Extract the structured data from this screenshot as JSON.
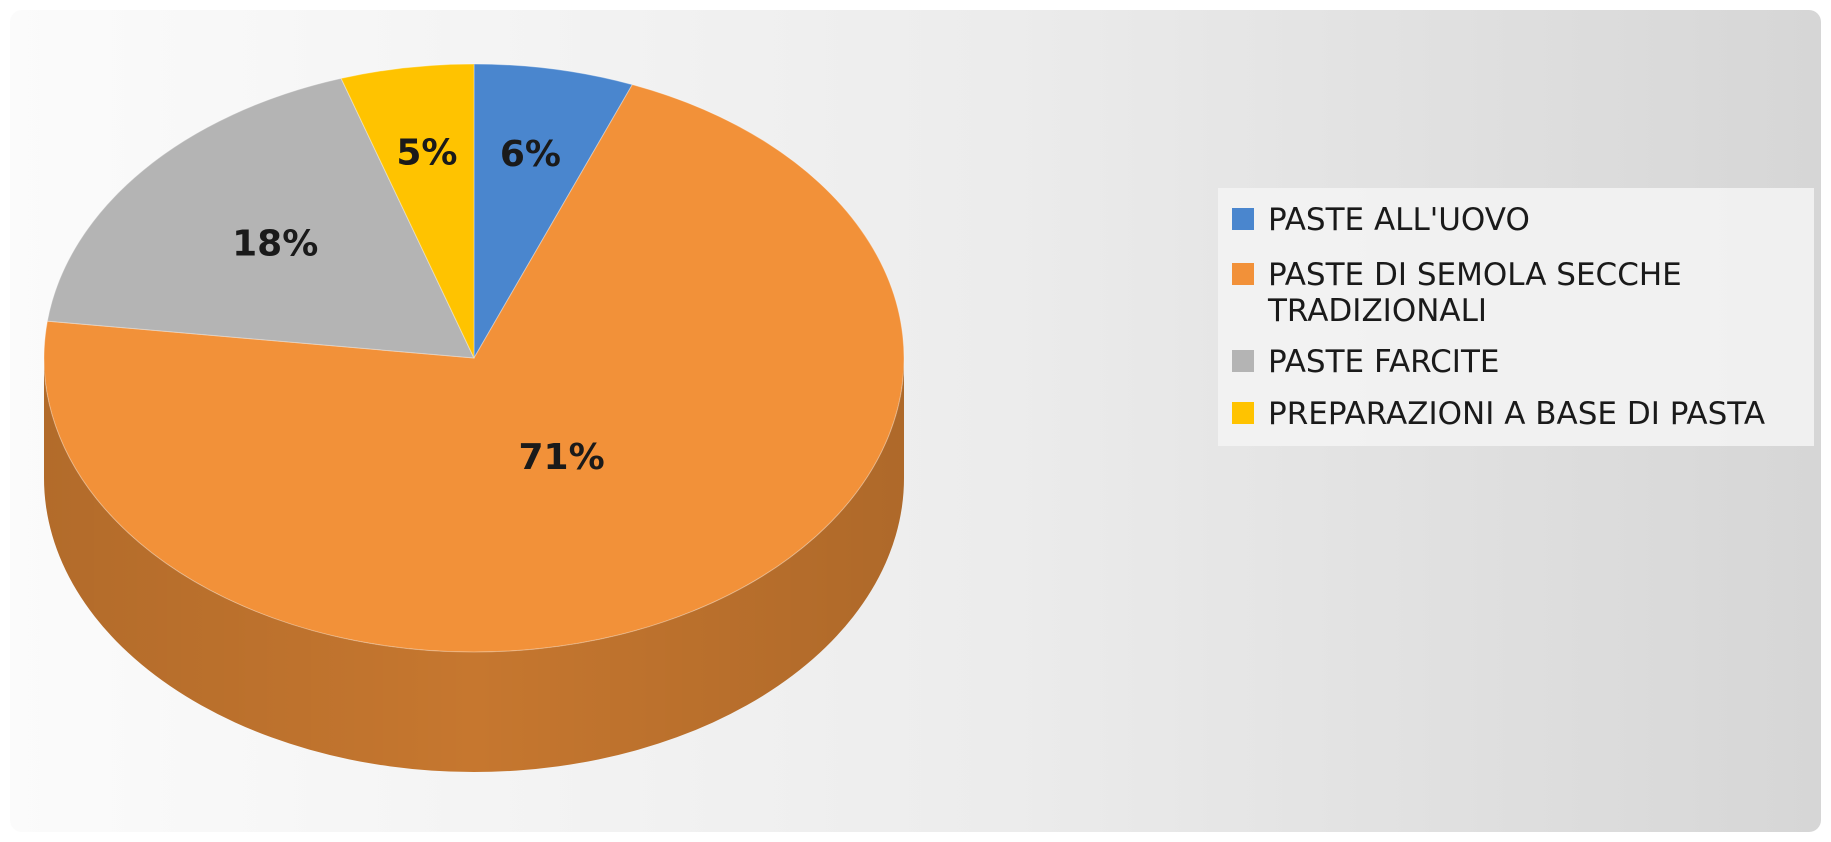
{
  "chart_data": {
    "type": "pie",
    "style": "3d",
    "title": "",
    "legend_position": "right",
    "categories": [
      "PASTE ALL'UOVO",
      "PASTE DI SEMOLA SECCHE TRADIZIONALI",
      "PASTE FARCITE",
      "PREPARAZIONI A BASE DI PASTA"
    ],
    "values": [
      6,
      71,
      18,
      5
    ],
    "labels": [
      "6%",
      "71%",
      "18%",
      "5%"
    ],
    "colors": [
      "#4A86CE",
      "#F29139",
      "#B4B4B4",
      "#FFC300"
    ],
    "legend": [
      {
        "lines": [
          "PASTE ALL'UOVO"
        ]
      },
      {
        "lines": [
          "PASTE DI SEMOLA SECCHE",
          "TRADIZIONALI"
        ]
      },
      {
        "lines": [
          "PASTE FARCITE"
        ]
      },
      {
        "lines": [
          "PREPARAZIONI A BASE DI PASTA"
        ]
      }
    ]
  }
}
